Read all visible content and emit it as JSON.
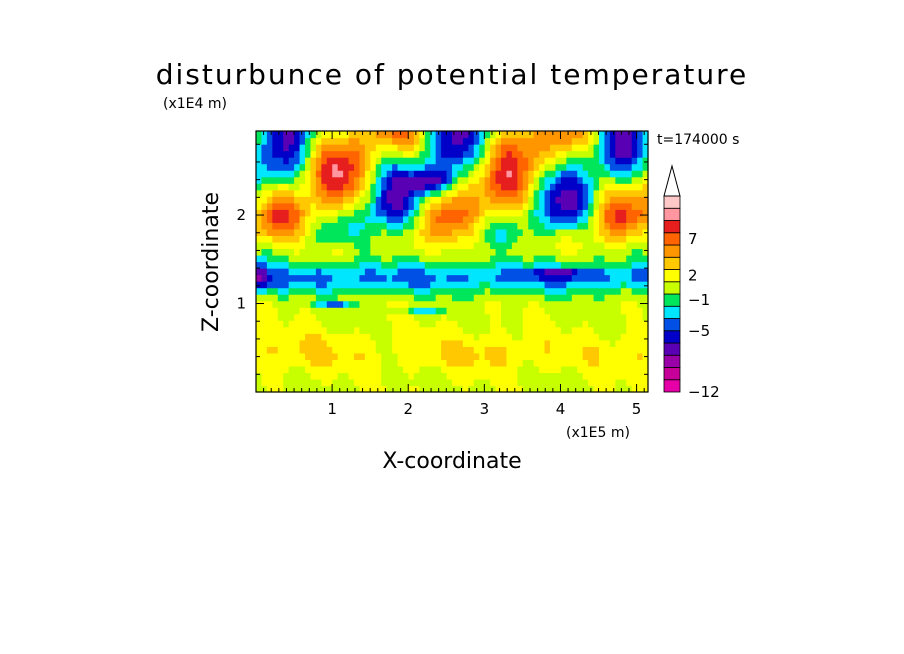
{
  "chart_data": {
    "type": "heatmap",
    "title": "disturbunce of potential temperature",
    "xlabel": "X-coordinate",
    "ylabel": "Z-coordinate",
    "x_scale_label": "(x1E5 m)",
    "y_scale_label": "(x1E4 m)",
    "time_label": "t=174000 s",
    "xlim": [
      0,
      5.15
    ],
    "ylim": [
      0,
      2.95
    ],
    "x_ticks": [
      {
        "value": 1,
        "label": "1"
      },
      {
        "value": 2,
        "label": "2"
      },
      {
        "value": 3,
        "label": "3"
      },
      {
        "value": 4,
        "label": "4"
      },
      {
        "value": 5,
        "label": "5"
      }
    ],
    "y_ticks": [
      {
        "value": 1,
        "label": "1"
      },
      {
        "value": 2,
        "label": "2"
      }
    ],
    "colorbar": {
      "extend": "max",
      "colors": [
        "#e600a8",
        "#c8009a",
        "#9a00a8",
        "#5a00b4",
        "#0000c8",
        "#0050e6",
        "#00e6ff",
        "#00e65a",
        "#c8ff00",
        "#ffff00",
        "#ffc800",
        "#ff9600",
        "#ff6400",
        "#e61e1e",
        "#ff96a0",
        "#ffc8c8",
        "#ffffff"
      ],
      "tick_labels": [
        {
          "label": "-12",
          "boundary": 0
        },
        {
          "label": "-5",
          "boundary": 5
        },
        {
          "label": "-1",
          "boundary": 7.5
        },
        {
          "label": "2",
          "boundary": 9.5
        },
        {
          "label": "7",
          "boundary": 12.5
        }
      ]
    },
    "field": {
      "nx": 72,
      "nz": 40,
      "description": "disturbance field, Z-coordinate (x1E4 m) vs X-coordinate (x1E5 m)",
      "regions": [
        {
          "level": "cyan",
          "z": [
            1.05,
            1.5
          ]
        },
        {
          "level": "yellow",
          "z": [
            0.2,
            0.7
          ]
        },
        {
          "level": "orange",
          "z": [
            0.35,
            0.55
          ]
        },
        {
          "level": "orange-red",
          "z": [
            1.8,
            2.7
          ]
        },
        {
          "level": "blue",
          "z": [
            2.2,
            2.7
          ]
        }
      ]
    }
  }
}
